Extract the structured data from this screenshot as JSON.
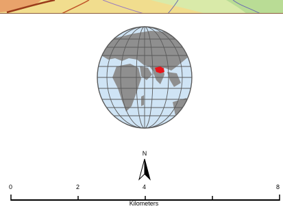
{
  "map": {
    "inset_globe": {
      "highlight_color": "#e8141a",
      "ocean_color": "#cfe4f5",
      "land_color": "#8f8f8f",
      "graticule_color": "#5a5a5a"
    },
    "top_strip": {
      "colors": [
        "#b05a2a",
        "#f0d98a",
        "#cfe6a8",
        "#a8d48a"
      ]
    }
  },
  "north_arrow": {
    "label": "N",
    "icon": "north-arrow-icon"
  },
  "scale_bar": {
    "ticks": [
      "0",
      "2",
      "4",
      "8"
    ],
    "units": "Kilometers"
  }
}
